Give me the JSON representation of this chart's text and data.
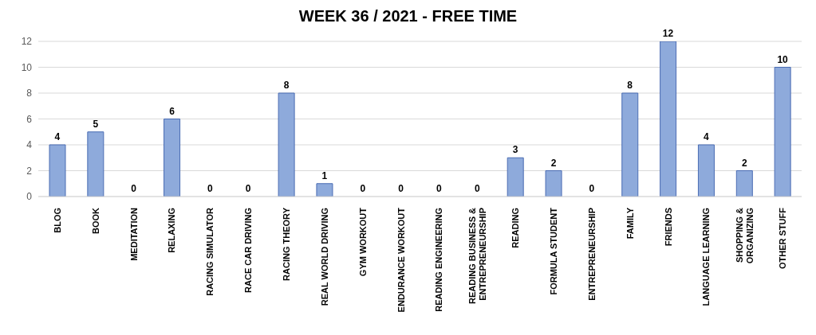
{
  "chart_data": {
    "type": "bar",
    "title": "WEEK 36 / 2021 - FREE TIME",
    "categories": [
      "BLOG",
      "BOOK",
      "MEDITATION",
      "RELAXING",
      "RACING SIMULATOR",
      "RACE CAR DRIVING",
      "RACING THEORY",
      "REAL WORLD DRIVING",
      "GYM WORKOUT",
      "ENDURANCE WORKOUT",
      "READING ENGINEERING",
      "READING BUSINESS & ENTREPRENEURSHIP",
      "READING",
      "FORMULA STUDENT",
      "ENTREPRENEURSHIP",
      "FAMILY",
      "FRIENDS",
      "LANGUAGE LEARNING",
      "SHOPPING & ORGANIZING",
      "OTHER STUFF"
    ],
    "values": [
      4,
      5,
      0,
      6,
      0,
      0,
      8,
      1,
      0,
      0,
      0,
      0,
      3,
      2,
      0,
      8,
      12,
      4,
      2,
      10
    ],
    "color": "#8eaadb",
    "ylim": [
      0,
      12
    ],
    "yticks": [
      0,
      2,
      4,
      6,
      8,
      10,
      12
    ],
    "grid": "y",
    "data_labels": true,
    "legend": false
  }
}
